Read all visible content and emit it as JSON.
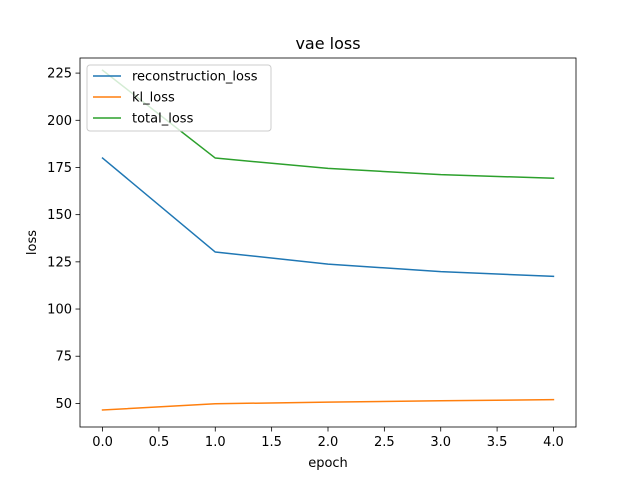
{
  "chart_data": {
    "type": "line",
    "title": "vae loss",
    "xlabel": "epoch",
    "ylabel": "loss",
    "x": [
      0,
      1,
      2,
      3,
      4
    ],
    "xlim": [
      -0.2,
      4.2
    ],
    "ylim": [
      37.5,
      233
    ],
    "xticks": [
      0.0,
      0.5,
      1.0,
      1.5,
      2.0,
      2.5,
      3.0,
      3.5,
      4.0
    ],
    "xtick_labels": [
      "0.0",
      "0.5",
      "1.0",
      "1.5",
      "2.0",
      "2.5",
      "3.0",
      "3.5",
      "4.0"
    ],
    "yticks": [
      50,
      75,
      100,
      125,
      150,
      175,
      200,
      225
    ],
    "ytick_labels": [
      "50",
      "75",
      "100",
      "125",
      "150",
      "175",
      "200",
      "225"
    ],
    "grid": false,
    "legend_position": "upper-left",
    "series": [
      {
        "name": "reconstruction_loss",
        "color": "#1f77b4",
        "values": [
          180.0,
          130.2,
          123.8,
          119.8,
          117.3
        ]
      },
      {
        "name": "kl_loss",
        "color": "#ff7f0e",
        "values": [
          46.5,
          49.8,
          50.7,
          51.4,
          52.0
        ]
      },
      {
        "name": "total_loss",
        "color": "#2ca02c",
        "values": [
          226.5,
          180.0,
          174.5,
          171.2,
          169.3
        ]
      }
    ]
  }
}
